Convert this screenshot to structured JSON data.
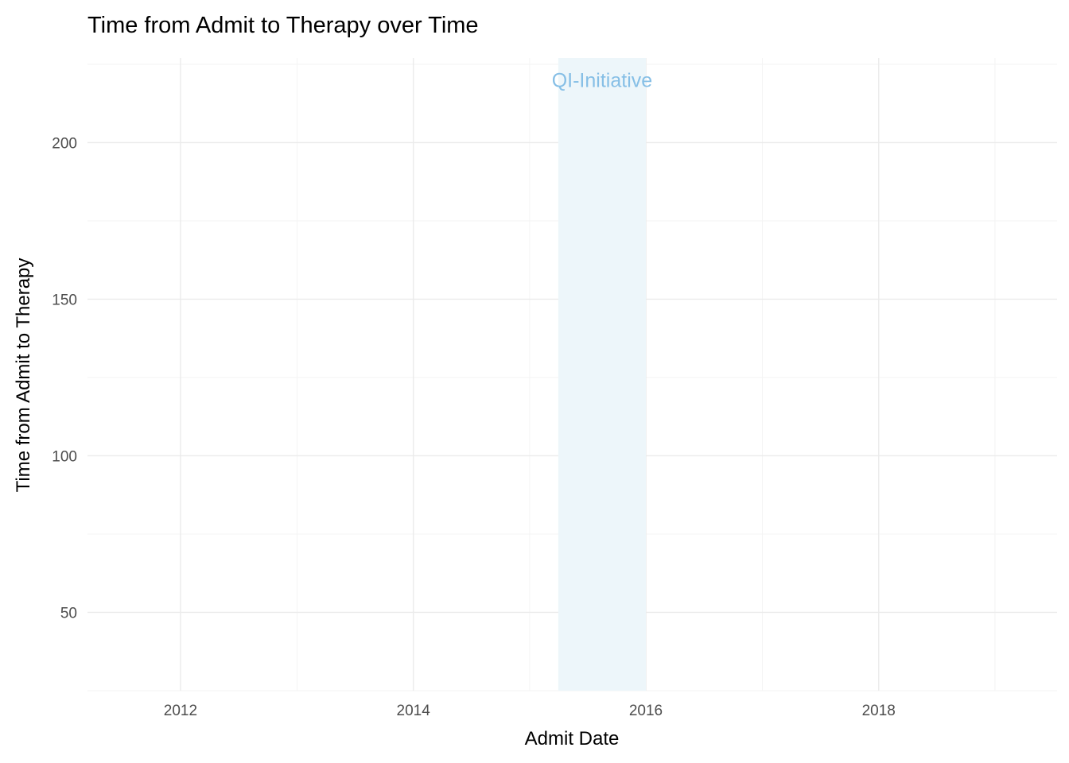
{
  "chart_data": {
    "type": "line",
    "title": "Time from Admit to Therapy over Time",
    "xlabel": "Admit Date",
    "ylabel": "Time from Admit to Therapy",
    "x_is_date": true,
    "xlim": [
      "2011-03-15",
      "2019-07-15"
    ],
    "ylim": [
      25,
      227
    ],
    "x_ticks": [
      {
        "value": "2012-01-01",
        "label": "2012"
      },
      {
        "value": "2014-01-01",
        "label": "2014"
      },
      {
        "value": "2016-01-01",
        "label": "2016"
      },
      {
        "value": "2018-01-01",
        "label": "2018"
      }
    ],
    "x_minor_ticks": [
      "2013-01-01",
      "2015-01-01",
      "2017-01-01",
      "2019-01-01"
    ],
    "y_ticks": [
      50,
      100,
      150,
      200
    ],
    "y_minor_ticks": [
      25,
      75,
      125,
      175,
      225
    ],
    "grid": true,
    "series": [],
    "annotations": [
      {
        "type": "shaded-region",
        "label": "QI-Initiative",
        "x_start": "2015-04-01",
        "x_end": "2016-01-01",
        "fill_color": "#edf6fa",
        "label_color": "#86bfe6",
        "label_y": 220
      }
    ]
  }
}
